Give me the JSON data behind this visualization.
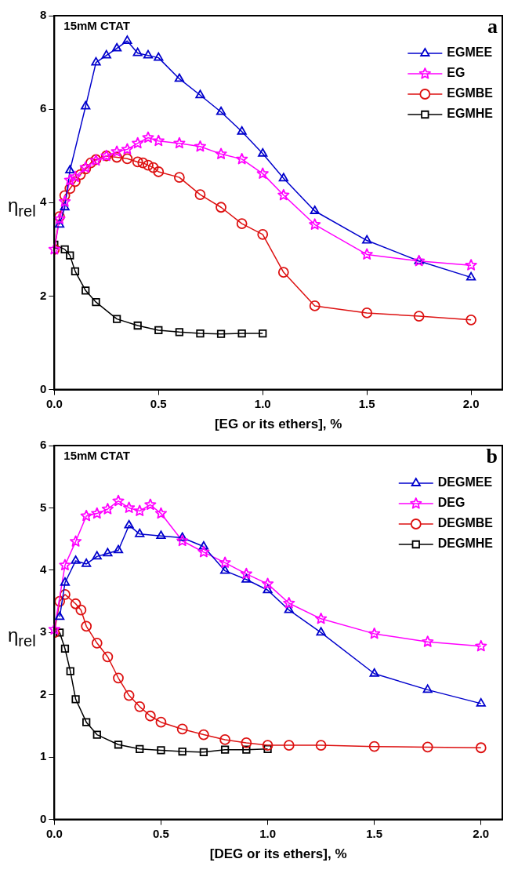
{
  "chart_data": [
    {
      "type": "line",
      "xlabel": "[EG or its ethers], %",
      "ylabel": "η$_{rel}$",
      "annotations": [
        "15mM CTAT",
        "a"
      ],
      "xlim": [
        0,
        2.15
      ],
      "xticks": [
        {
          "value": 0,
          "label": "0.0"
        },
        {
          "value": 0.5,
          "label": "0.5"
        },
        {
          "value": 1,
          "label": "1.0"
        },
        {
          "value": 1.5,
          "label": "1.5"
        },
        {
          "value": 2,
          "label": "2.0"
        }
      ],
      "ylim": [
        0,
        8
      ],
      "yticks": [
        0,
        2,
        4,
        6,
        8
      ],
      "grid": false,
      "legend": "top right",
      "series": [
        {
          "name": "EGMEE",
          "color": "#0000cc",
          "marker": "triangle",
          "x": [
            0.025,
            0.05,
            0.075,
            0.15,
            0.2,
            0.25,
            0.3,
            0.35,
            0.4,
            0.45,
            0.5,
            0.6,
            0.7,
            0.8,
            0.9,
            1.0,
            1.1,
            1.25,
            1.5,
            1.75,
            2.0
          ],
          "values": [
            3.53,
            3.9,
            4.69,
            6.06,
            7.0,
            7.15,
            7.3,
            7.46,
            7.2,
            7.15,
            7.1,
            6.65,
            6.3,
            5.94,
            5.52,
            5.05,
            4.52,
            3.82,
            3.19,
            2.75,
            2.4
          ]
        },
        {
          "name": "EG",
          "color": "#ff00ff",
          "marker": "star",
          "x": [
            0,
            0.025,
            0.05,
            0.075,
            0.1,
            0.15,
            0.2,
            0.25,
            0.3,
            0.35,
            0.4,
            0.45,
            0.5,
            0.6,
            0.7,
            0.8,
            0.9,
            1.0,
            1.1,
            1.25,
            1.5,
            1.75,
            2.0
          ],
          "values": [
            3.0,
            3.65,
            4.02,
            4.48,
            4.55,
            4.75,
            4.9,
            5.0,
            5.09,
            5.14,
            5.27,
            5.39,
            5.32,
            5.27,
            5.2,
            5.04,
            4.93,
            4.62,
            4.16,
            3.53,
            2.89,
            2.75,
            2.66
          ]
        },
        {
          "name": "EGMBE",
          "color": "#dd1111",
          "marker": "circle",
          "x": [
            0,
            0.025,
            0.05,
            0.075,
            0.1,
            0.125,
            0.15,
            0.175,
            0.2,
            0.25,
            0.3,
            0.35,
            0.4,
            0.425,
            0.45,
            0.475,
            0.5,
            0.6,
            0.7,
            0.8,
            0.9,
            1.0,
            1.1,
            1.25,
            1.5,
            1.75,
            2.0
          ],
          "values": [
            3.0,
            3.7,
            4.15,
            4.3,
            4.45,
            4.6,
            4.72,
            4.85,
            4.92,
            5.0,
            4.97,
            4.94,
            4.87,
            4.85,
            4.8,
            4.75,
            4.66,
            4.54,
            4.17,
            3.9,
            3.55,
            3.32,
            2.51,
            1.79,
            1.64,
            1.57,
            1.49
          ]
        },
        {
          "name": "EGMHE",
          "color": "#000000",
          "marker": "square",
          "x": [
            0,
            0.05,
            0.075,
            0.1,
            0.15,
            0.2,
            0.3,
            0.4,
            0.5,
            0.6,
            0.7,
            0.8,
            0.9,
            1.0
          ],
          "values": [
            3.1,
            3.0,
            2.87,
            2.53,
            2.12,
            1.87,
            1.51,
            1.37,
            1.27,
            1.23,
            1.2,
            1.19,
            1.2,
            1.2
          ]
        }
      ]
    },
    {
      "type": "line",
      "xlabel": "[DEG or its ethers], %",
      "ylabel": "η$_{rel}$",
      "annotations": [
        "15mM CTAT",
        "b"
      ],
      "xlim": [
        0,
        2.1
      ],
      "xticks": [
        {
          "value": 0,
          "label": "0.0"
        },
        {
          "value": 0.5,
          "label": "0.5"
        },
        {
          "value": 1,
          "label": "1.0"
        },
        {
          "value": 1.5,
          "label": "1.5"
        },
        {
          "value": 2,
          "label": "2.0"
        }
      ],
      "ylim": [
        0,
        6
      ],
      "yticks": [
        0,
        1,
        2,
        3,
        4,
        5,
        6
      ],
      "grid": false,
      "legend": "top right",
      "series": [
        {
          "name": "DEGMEE",
          "color": "#0000cc",
          "marker": "triangle",
          "x": [
            0.025,
            0.05,
            0.1,
            0.15,
            0.2,
            0.25,
            0.3,
            0.35,
            0.4,
            0.5,
            0.6,
            0.7,
            0.8,
            0.9,
            1.0,
            1.1,
            1.25,
            1.5,
            1.75,
            2.0
          ],
          "values": [
            3.25,
            3.8,
            4.15,
            4.1,
            4.22,
            4.27,
            4.32,
            4.72,
            4.58,
            4.55,
            4.52,
            4.38,
            3.99,
            3.85,
            3.68,
            3.36,
            3.0,
            2.34,
            2.08,
            1.86
          ]
        },
        {
          "name": "DEG",
          "color": "#ff00ff",
          "marker": "star",
          "x": [
            0,
            0.05,
            0.1,
            0.15,
            0.2,
            0.25,
            0.3,
            0.35,
            0.4,
            0.45,
            0.5,
            0.6,
            0.7,
            0.8,
            0.9,
            1.0,
            1.1,
            1.25,
            1.5,
            1.75,
            2.0
          ],
          "values": [
            3.05,
            4.08,
            4.46,
            4.87,
            4.91,
            4.98,
            5.11,
            5.0,
            4.95,
            5.05,
            4.91,
            4.47,
            4.29,
            4.12,
            3.94,
            3.78,
            3.47,
            3.22,
            2.98,
            2.85,
            2.78
          ]
        },
        {
          "name": "DEGMBE",
          "color": "#dd1111",
          "marker": "circle",
          "x": [
            0,
            0.025,
            0.05,
            0.1,
            0.125,
            0.15,
            0.2,
            0.25,
            0.3,
            0.35,
            0.4,
            0.45,
            0.5,
            0.6,
            0.7,
            0.8,
            0.9,
            1.0,
            1.1,
            1.25,
            1.5,
            1.75,
            2.0
          ],
          "values": [
            3.0,
            3.5,
            3.61,
            3.46,
            3.36,
            3.1,
            2.83,
            2.61,
            2.27,
            1.99,
            1.81,
            1.66,
            1.56,
            1.45,
            1.36,
            1.28,
            1.23,
            1.19,
            1.19,
            1.19,
            1.17,
            1.16,
            1.15
          ]
        },
        {
          "name": "DEGMHE",
          "color": "#000000",
          "marker": "square",
          "x": [
            0.025,
            0.05,
            0.075,
            0.1,
            0.15,
            0.2,
            0.3,
            0.4,
            0.5,
            0.6,
            0.7,
            0.8,
            0.9,
            1.0
          ],
          "values": [
            3.0,
            2.74,
            2.38,
            1.93,
            1.56,
            1.36,
            1.2,
            1.13,
            1.11,
            1.09,
            1.08,
            1.12,
            1.12,
            1.13
          ]
        }
      ]
    }
  ]
}
